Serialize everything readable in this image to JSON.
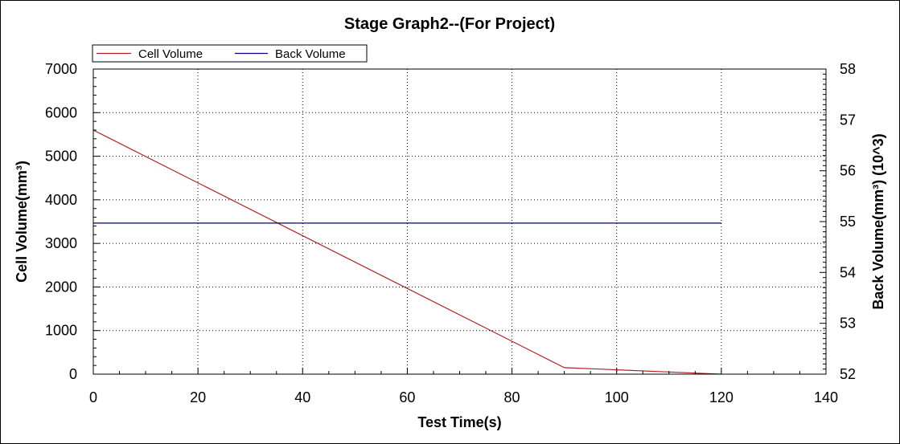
{
  "chart_data": {
    "type": "line",
    "title": "Stage Graph2--(For Project)",
    "xlabel": "Test Time(s)",
    "ylabel": "Cell Volume(mm³)",
    "y2label": "Back Volume(mm³) (10^3)",
    "xlim": [
      0,
      140
    ],
    "ylim": [
      0,
      7000
    ],
    "y2lim": [
      52,
      58
    ],
    "xticks": [
      0,
      20,
      40,
      60,
      80,
      100,
      120,
      140
    ],
    "yticks": [
      0,
      1000,
      2000,
      3000,
      4000,
      5000,
      6000,
      7000
    ],
    "y2ticks": [
      52,
      53,
      54,
      55,
      56,
      57,
      58
    ],
    "grid": true,
    "legend_position": "top-left",
    "series": [
      {
        "name": "Cell Volume",
        "axis": "left",
        "color": "#b22222",
        "x": [
          0,
          90,
          100,
          110,
          120
        ],
        "y": [
          5600,
          150,
          100,
          50,
          0
        ]
      },
      {
        "name": "Back Volume",
        "axis": "right",
        "color": "#000080",
        "x": [
          0,
          120
        ],
        "y": [
          54.97,
          54.97
        ]
      }
    ]
  }
}
